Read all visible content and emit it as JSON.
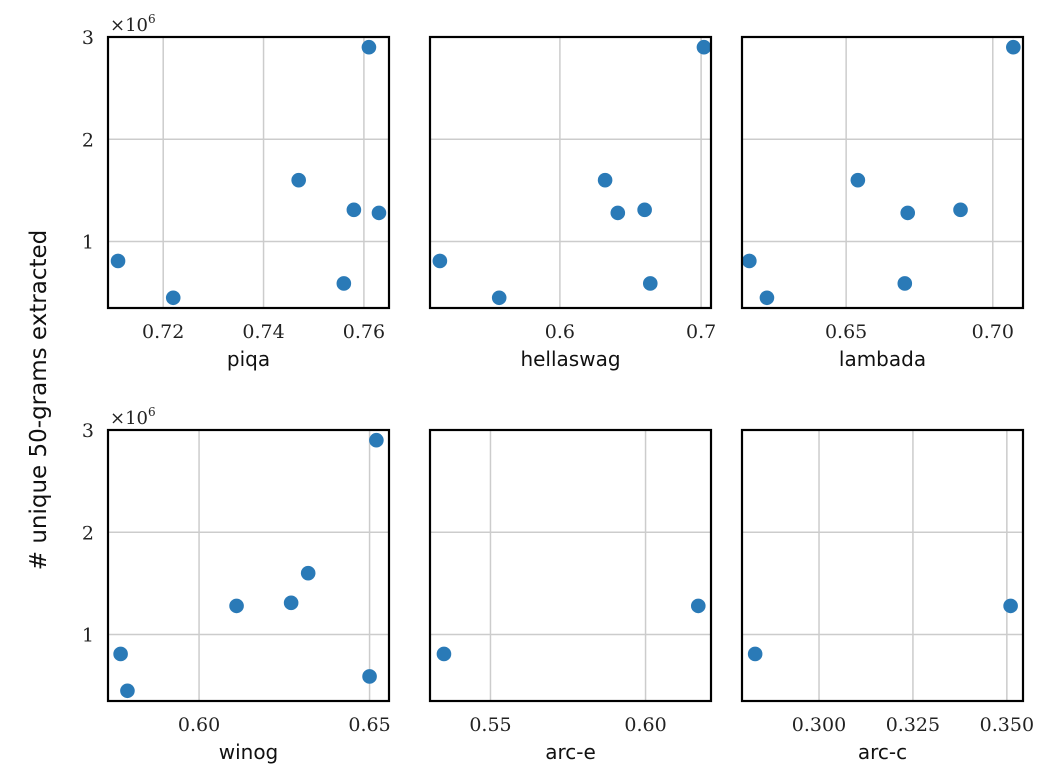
{
  "ylabel": "# unique 50-grams extracted",
  "y_multiplier": {
    "base": "×10",
    "exponent": "6"
  },
  "colors": {
    "points": "#2a7ab7",
    "grid": "#cccccc",
    "frame": "#000000"
  },
  "chart_data": [
    {
      "type": "scatter",
      "xlabel": "piqa",
      "xlim": [
        0.709,
        0.765
      ],
      "ylim": [
        0.35,
        3.0
      ],
      "xticks": [
        {
          "v": 0.72,
          "label": "0.72"
        },
        {
          "v": 0.74,
          "label": "0.74"
        },
        {
          "v": 0.76,
          "label": "0.76"
        }
      ],
      "yticks": [
        {
          "v": 1,
          "label": "1"
        },
        {
          "v": 2,
          "label": "2"
        },
        {
          "v": 3,
          "label": "3"
        }
      ],
      "show_yticks": true,
      "points": [
        [
          0.711,
          0.81
        ],
        [
          0.722,
          0.45
        ],
        [
          0.747,
          1.6
        ],
        [
          0.756,
          0.59
        ],
        [
          0.758,
          1.31
        ],
        [
          0.761,
          2.9
        ],
        [
          0.763,
          1.28
        ]
      ]
    },
    {
      "type": "scatter",
      "xlabel": "hellaswag",
      "xlim": [
        0.508,
        0.707
      ],
      "ylim": [
        0.35,
        3.0
      ],
      "xticks": [
        {
          "v": 0.6,
          "label": "0.6"
        },
        {
          "v": 0.7,
          "label": "0.7"
        }
      ],
      "yticks": [
        {
          "v": 1,
          "label": "1"
        },
        {
          "v": 2,
          "label": "2"
        },
        {
          "v": 3,
          "label": "3"
        }
      ],
      "show_yticks": false,
      "points": [
        [
          0.515,
          0.81
        ],
        [
          0.557,
          0.45
        ],
        [
          0.632,
          1.6
        ],
        [
          0.641,
          1.28
        ],
        [
          0.66,
          1.31
        ],
        [
          0.664,
          0.59
        ],
        [
          0.702,
          2.9
        ]
      ]
    },
    {
      "type": "scatter",
      "xlabel": "lambada",
      "xlim": [
        0.6145,
        0.7103
      ],
      "ylim": [
        0.35,
        3.0
      ],
      "xticks": [
        {
          "v": 0.65,
          "label": "0.65"
        },
        {
          "v": 0.7,
          "label": "0.70"
        }
      ],
      "yticks": [
        {
          "v": 1,
          "label": "1"
        },
        {
          "v": 2,
          "label": "2"
        },
        {
          "v": 3,
          "label": "3"
        }
      ],
      "show_yticks": false,
      "points": [
        [
          0.617,
          0.81
        ],
        [
          0.623,
          0.45
        ],
        [
          0.654,
          1.6
        ],
        [
          0.67,
          0.59
        ],
        [
          0.671,
          1.28
        ],
        [
          0.689,
          1.31
        ],
        [
          0.707,
          2.9
        ]
      ]
    },
    {
      "type": "scatter",
      "xlabel": "winog",
      "xlim": [
        0.5733,
        0.6557
      ],
      "ylim": [
        0.35,
        3.0
      ],
      "xticks": [
        {
          "v": 0.6,
          "label": "0.60"
        },
        {
          "v": 0.65,
          "label": "0.65"
        }
      ],
      "yticks": [
        {
          "v": 1,
          "label": "1"
        },
        {
          "v": 2,
          "label": "2"
        },
        {
          "v": 3,
          "label": "3"
        }
      ],
      "show_yticks": true,
      "points": [
        [
          0.577,
          0.81
        ],
        [
          0.579,
          0.45
        ],
        [
          0.611,
          1.28
        ],
        [
          0.627,
          1.31
        ],
        [
          0.632,
          1.6
        ],
        [
          0.65,
          0.59
        ],
        [
          0.652,
          2.9
        ]
      ]
    },
    {
      "type": "scatter",
      "xlabel": "arc-e",
      "xlim": [
        0.5305,
        0.6211
      ],
      "ylim": [
        0.35,
        3.0
      ],
      "xticks": [
        {
          "v": 0.55,
          "label": "0.55"
        },
        {
          "v": 0.6,
          "label": "0.60"
        }
      ],
      "yticks": [
        {
          "v": 1,
          "label": "1"
        },
        {
          "v": 2,
          "label": "2"
        },
        {
          "v": 3,
          "label": "3"
        }
      ],
      "show_yticks": false,
      "points": [
        [
          0.535,
          0.81
        ],
        [
          0.617,
          1.28
        ]
      ]
    },
    {
      "type": "scatter",
      "xlabel": "arc-c",
      "xlim": [
        0.2795,
        0.3543
      ],
      "ylim": [
        0.35,
        3.0
      ],
      "xticks": [
        {
          "v": 0.3,
          "label": "0.300"
        },
        {
          "v": 0.325,
          "label": "0.325"
        },
        {
          "v": 0.35,
          "label": "0.350"
        }
      ],
      "yticks": [
        {
          "v": 1,
          "label": "1"
        },
        {
          "v": 2,
          "label": "2"
        },
        {
          "v": 3,
          "label": "3"
        }
      ],
      "show_yticks": false,
      "points": [
        [
          0.283,
          0.81
        ],
        [
          0.351,
          1.28
        ]
      ]
    }
  ]
}
